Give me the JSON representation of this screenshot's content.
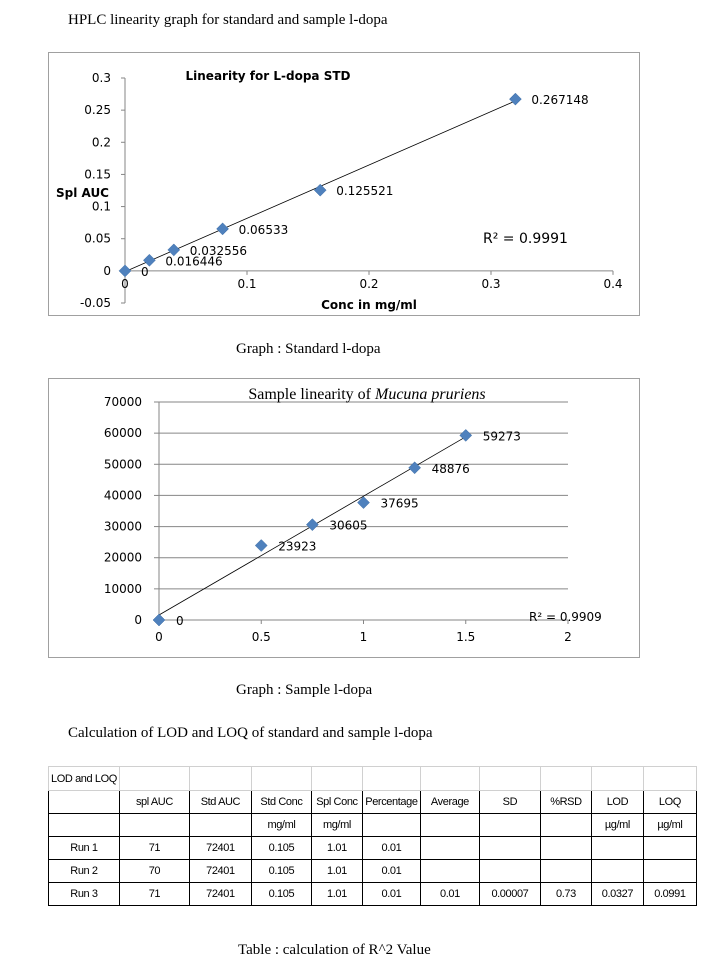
{
  "heading": "HPLC linearity graph for standard and sample l-dopa",
  "chart_data": [
    {
      "type": "scatter",
      "title": "Linearity for L-dopa STD",
      "xlabel": "Conc in mg/ml",
      "ylabel": "Spl AUC",
      "x": [
        0,
        0.02,
        0.04,
        0.08,
        0.16,
        0.32
      ],
      "y": [
        0,
        0.016446,
        0.032556,
        0.06533,
        0.125521,
        0.267148
      ],
      "point_labels": [
        "0",
        "0.016446",
        "0.032556",
        "0.06533",
        "0.125521",
        "0.267148"
      ],
      "xticks": [
        "0",
        "0.1",
        "0.2",
        "0.3",
        "0.4"
      ],
      "yticks": [
        "-0.05",
        "0",
        "0.05",
        "0.1",
        "0.15",
        "0.2",
        "0.25",
        "0.3"
      ],
      "xlim": [
        0,
        0.4
      ],
      "ylim": [
        -0.05,
        0.3
      ],
      "trendline": true,
      "r2_label": "R² = 0.9991",
      "marker_color": "#4f81bd",
      "grid": false
    },
    {
      "type": "scatter",
      "title_plain": "Sample linearity  of ",
      "title_italic": "Mucuna pruriens",
      "x": [
        0,
        0.5,
        0.75,
        1,
        1.25,
        1.5
      ],
      "y": [
        0,
        23923,
        30605,
        37695,
        48876,
        59273
      ],
      "point_labels": [
        "0",
        "23923",
        "30605",
        "37695",
        "48876",
        "59273"
      ],
      "xticks": [
        "0",
        "0.5",
        "1",
        "1.5",
        "2"
      ],
      "yticks": [
        "0",
        "10000",
        "20000",
        "30000",
        "40000",
        "50000",
        "60000",
        "70000"
      ],
      "xlim": [
        0,
        2
      ],
      "ylim": [
        0,
        70000
      ],
      "trendline": true,
      "r2_label": "R² = 0.9909",
      "marker_color": "#4f81bd",
      "grid": true
    }
  ],
  "caption1": "Graph :  Standard l-dopa",
  "caption2": "Graph : Sample l-dopa",
  "subheading": "Calculation of LOD and LOQ of standard and sample l-dopa",
  "table": {
    "corner_label": "LOD and LOQ",
    "headers": [
      "",
      "spl AUC",
      "Std AUC",
      "Std Conc",
      "Spl Conc",
      "Percentage",
      "Average",
      "SD",
      "%RSD",
      "LOD",
      "LOQ"
    ],
    "units": [
      "",
      "",
      "",
      "mg/ml",
      "mg/ml",
      "",
      "",
      "",
      "",
      "µg/ml",
      "µg/ml"
    ],
    "rows": [
      [
        "Run 1",
        "71",
        "72401",
        "0.105",
        "1.01",
        "0.01",
        "",
        "",
        "",
        "",
        ""
      ],
      [
        "Run 2",
        "70",
        "72401",
        "0.105",
        "1.01",
        "0.01",
        "",
        "",
        "",
        "",
        ""
      ],
      [
        "Run 3",
        "71",
        "72401",
        "0.105",
        "1.01",
        "0.01",
        "0.01",
        "0.00007",
        "0.73",
        "0.0327",
        "0.0991"
      ]
    ]
  },
  "caption3": "Table :  calculation of R^2 Value"
}
